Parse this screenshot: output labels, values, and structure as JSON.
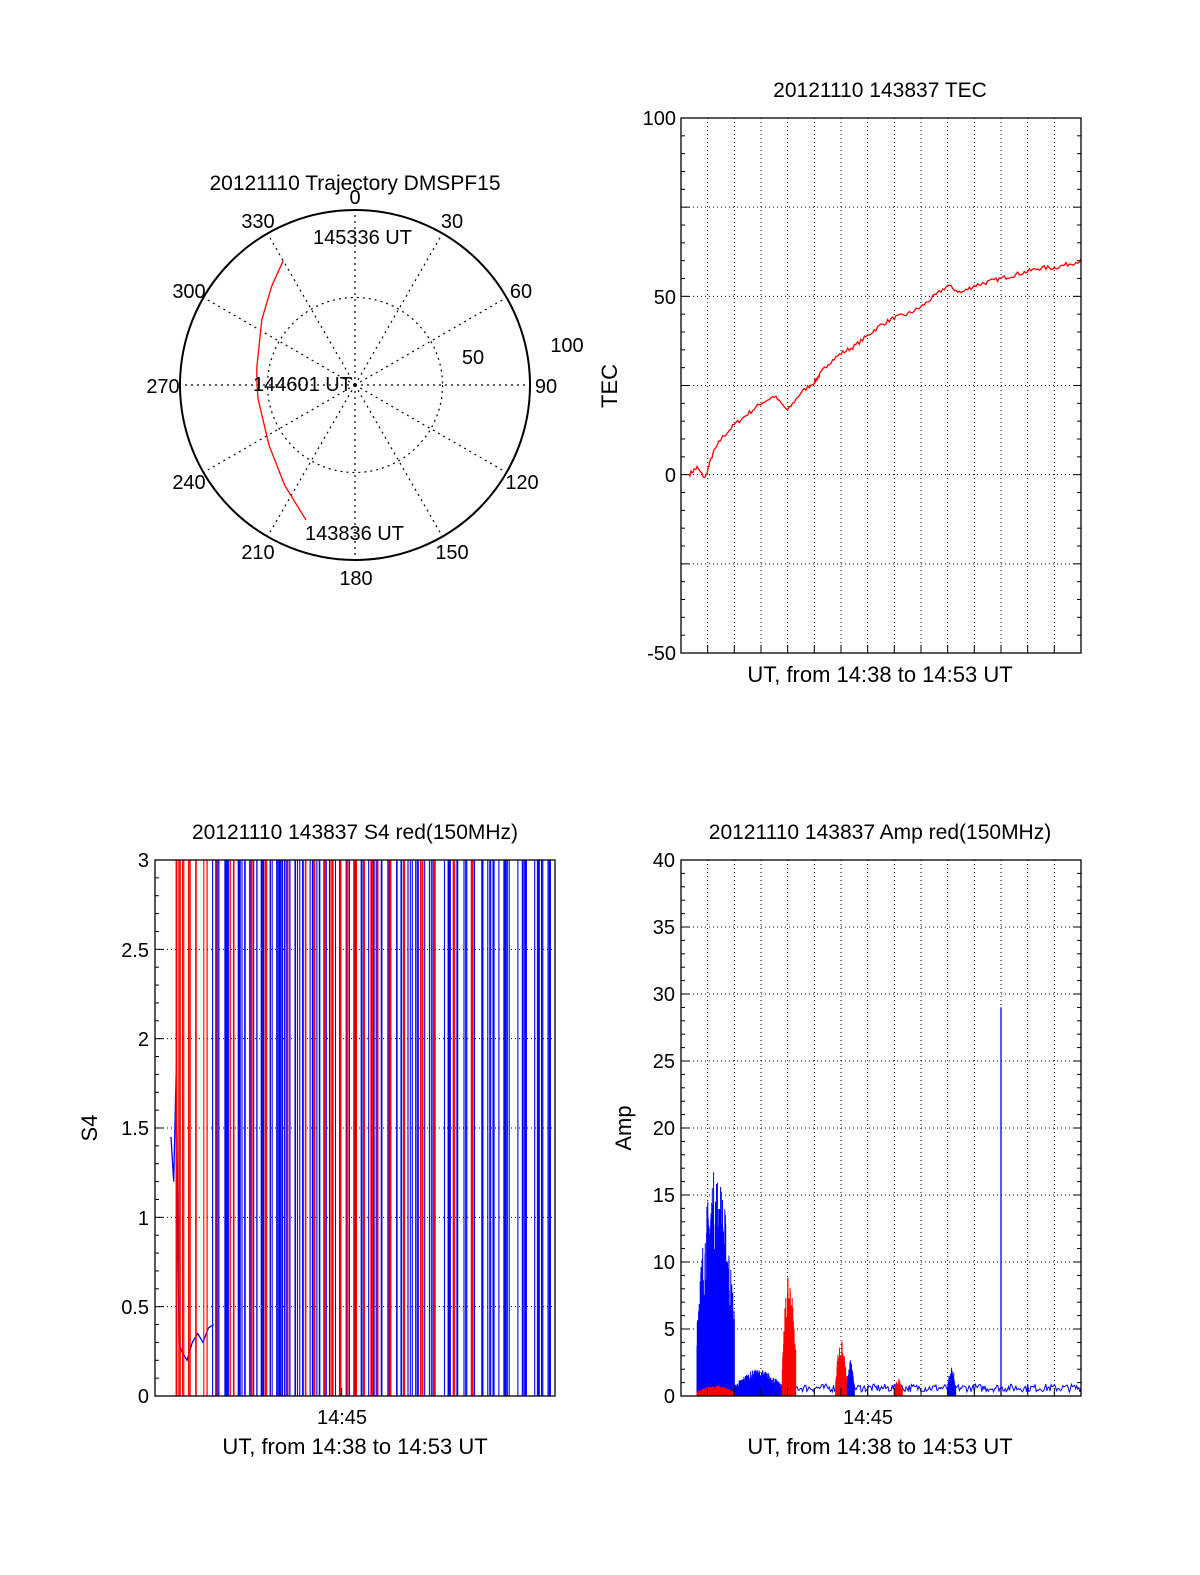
{
  "colors": {
    "red": "#ff0000",
    "blue": "#0000ff",
    "axis": "#000000",
    "grid": "#000000",
    "background": "#ffffff"
  },
  "chart_data": [
    {
      "id": "trajectory",
      "type": "polar",
      "title": "20121110 Trajectory DMSPF15",
      "angle_ticks": [
        "0",
        "30",
        "60",
        "90",
        "120",
        "150",
        "180",
        "210",
        "240",
        "270",
        "300",
        "330"
      ],
      "radial_ticks": [
        "50",
        "100"
      ],
      "rlim": [
        0,
        100
      ],
      "grid": true,
      "series": [
        {
          "color": "red",
          "azimuth": [
            200,
            215,
            235,
            262,
            270,
            280,
            305,
            320,
            330
          ],
          "zenith": [
            82,
            70,
            60,
            56,
            56,
            57,
            65,
            74,
            82
          ]
        }
      ],
      "annotations": [
        {
          "text": "145336 UT",
          "at": "track end"
        },
        {
          "text": "144601 UT",
          "at": "track middle"
        },
        {
          "text": "143836 UT",
          "at": "track start"
        }
      ]
    },
    {
      "id": "tec",
      "type": "line",
      "title": "20121110 143837 TEC",
      "xlabel": "UT, from 14:38 to 14:53 UT",
      "ylabel": "TEC",
      "xlim": [
        0,
        15
      ],
      "ylim": [
        -50,
        100
      ],
      "yticks": [
        "100",
        "50",
        "0",
        "-50"
      ],
      "grid": true,
      "series": [
        {
          "color": "red",
          "x": [
            0.3,
            0.6,
            0.9,
            1.2,
            1.5,
            2.0,
            2.5,
            3.0,
            3.5,
            4.0,
            4.5,
            5.0,
            5.2,
            5.5,
            6.0,
            6.5,
            7.0,
            7.5,
            8.0,
            8.5,
            9.0,
            9.5,
            10.0,
            10.5,
            11.0,
            11.5,
            12.0,
            12.5,
            13.0,
            13.5,
            14.0,
            14.5,
            15.0
          ],
          "y": [
            0,
            2,
            -1,
            6,
            10,
            14,
            17,
            20,
            22,
            18,
            23,
            26,
            28,
            31,
            34,
            36,
            39,
            42,
            44,
            45,
            47,
            50,
            53,
            51,
            53,
            54,
            55,
            56,
            57,
            58,
            58,
            59,
            60
          ]
        }
      ]
    },
    {
      "id": "s4",
      "type": "line",
      "title": "20121110 143837 S4 red(150MHz)",
      "xlabel": "UT, from 14:38 to 14:53 UT",
      "ylabel": "S4",
      "xlim": [
        0,
        15
      ],
      "ylim": [
        0,
        3
      ],
      "yticks": [
        "3",
        "2.5",
        "2",
        "1.5",
        "1",
        "0.5",
        "0"
      ],
      "xtick_label": "14:45",
      "grid": true,
      "series": [
        {
          "color": "red",
          "x_spikes": [
            0.8,
            0.95,
            1.1,
            1.3,
            1.6,
            1.9,
            2.3,
            2.9,
            3.6,
            4.2,
            5.0,
            5.6,
            6.0,
            6.3,
            6.6,
            6.9,
            7.2,
            7.5,
            7.8,
            8.1,
            8.4,
            8.8,
            9.3,
            10.0,
            10.5,
            11.2,
            11.9
          ]
        },
        {
          "color": "blue",
          "x_spikes": [
            2.1,
            2.6,
            3.0,
            3.3,
            3.8,
            4.1,
            4.5,
            4.8,
            5.3,
            5.9,
            6.5,
            7.0,
            7.6,
            8.0,
            8.6,
            9.1,
            9.6,
            10.2,
            10.8,
            11.4,
            12.0,
            12.6,
            13.2,
            13.7,
            14.2,
            14.6
          ],
          "x": [
            0.6,
            0.7,
            0.8,
            0.9,
            1.0,
            1.2,
            1.4,
            1.6,
            1.8,
            2.0,
            2.2
          ],
          "y": [
            1.45,
            1.2,
            1.85,
            0.3,
            0.25,
            0.2,
            0.3,
            0.35,
            0.3,
            0.38,
            0.4
          ]
        }
      ]
    },
    {
      "id": "amp",
      "type": "line",
      "title": "20121110 143837 Amp red(150MHz)",
      "xlabel": "UT, from 14:38 to 14:53 UT",
      "ylabel": "Amp",
      "xlim": [
        0,
        15
      ],
      "ylim": [
        0,
        40
      ],
      "yticks": [
        "40",
        "35",
        "30",
        "25",
        "20",
        "15",
        "10",
        "5",
        "0"
      ],
      "xtick_label": "14:45",
      "grid": true,
      "series": [
        {
          "color": "red",
          "bursts": [
            {
              "x0": 0.6,
              "x1": 2.0,
              "peak": 0.8
            },
            {
              "x0": 3.8,
              "x1": 4.3,
              "peak": 9
            },
            {
              "x0": 5.8,
              "x1": 6.2,
              "peak": 4.2
            },
            {
              "x0": 8.0,
              "x1": 8.3,
              "peak": 1.3
            }
          ]
        },
        {
          "color": "blue",
          "bursts": [
            {
              "x0": 0.6,
              "x1": 2.0,
              "peak": 17
            },
            {
              "x0": 2.0,
              "x1": 3.8,
              "peak": 2
            },
            {
              "x0": 6.2,
              "x1": 6.5,
              "peak": 2.8
            },
            {
              "x0": 10.0,
              "x1": 10.3,
              "peak": 2.2
            }
          ],
          "spike": {
            "x": 12.0,
            "peak": 29
          }
        }
      ]
    }
  ]
}
